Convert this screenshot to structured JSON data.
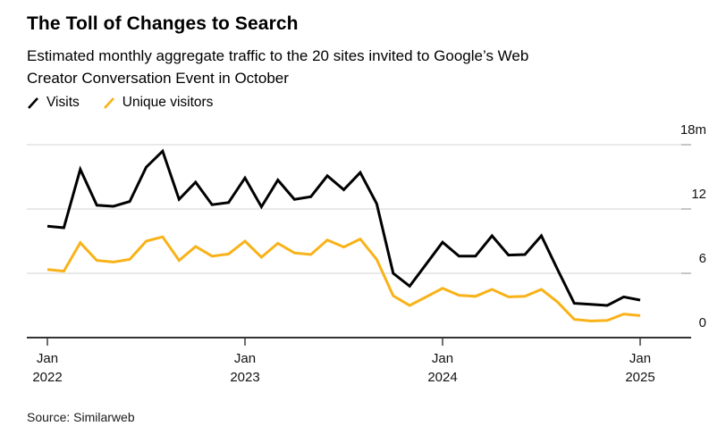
{
  "header": {
    "title": "The Toll of Changes to Search",
    "subtitle_lines": [
      "Estimated monthly aggregate traffic to the 20 sites invited to Google’s Web",
      "Creator Conversation Event in October"
    ]
  },
  "legend": [
    {
      "label": "Visits",
      "color": "#000000"
    },
    {
      "label": "Unique visitors",
      "color": "#F9B218"
    }
  ],
  "source": "Source: Similarweb",
  "chart_data": {
    "type": "line",
    "title": "The Toll of Changes to Search",
    "subtitle": "Estimated monthly aggregate traffic to the 20 sites invited to Google’s Web Creator Conversation Event in October",
    "unit": "millions",
    "ylim": [
      0,
      18
    ],
    "y_ticks": [
      0,
      6,
      12,
      18
    ],
    "y_tick_labels": [
      "0",
      "6",
      "12",
      "18m"
    ],
    "x_tick_months": [
      0,
      12,
      24,
      36
    ],
    "x_tick_labels": [
      [
        "Jan",
        "2022"
      ],
      [
        "Jan",
        "2023"
      ],
      [
        "Jan",
        "2024"
      ],
      [
        "Jan",
        "2025"
      ]
    ],
    "grid": true,
    "legend_position": "top-left",
    "x": [
      "2022-01",
      "2022-02",
      "2022-03",
      "2022-04",
      "2022-05",
      "2022-06",
      "2022-07",
      "2022-08",
      "2022-09",
      "2022-10",
      "2022-11",
      "2022-12",
      "2023-01",
      "2023-02",
      "2023-03",
      "2023-04",
      "2023-05",
      "2023-06",
      "2023-07",
      "2023-08",
      "2023-09",
      "2023-10",
      "2023-11",
      "2023-12",
      "2024-01",
      "2024-02",
      "2024-03",
      "2024-04",
      "2024-05",
      "2024-06",
      "2024-07",
      "2024-08",
      "2024-09",
      "2024-10",
      "2024-11",
      "2024-12",
      "2025-01"
    ],
    "series": [
      {
        "name": "Visits",
        "color": "#000000",
        "values": [
          10.4,
          10.25,
          15.7,
          12.35,
          12.25,
          12.7,
          15.9,
          17.4,
          12.9,
          14.5,
          12.4,
          12.6,
          14.9,
          12.2,
          14.7,
          12.9,
          13.15,
          15.1,
          13.8,
          15.4,
          12.5,
          6.0,
          4.8,
          6.85,
          8.9,
          7.6,
          7.6,
          9.5,
          7.7,
          7.75,
          9.5,
          6.3,
          3.2,
          3.1,
          3.0,
          3.8,
          3.5
        ]
      },
      {
        "name": "Unique visitors",
        "color": "#F9B218",
        "values": [
          6.35,
          6.2,
          8.85,
          7.2,
          7.05,
          7.3,
          9.0,
          9.4,
          7.2,
          8.5,
          7.6,
          7.8,
          9.0,
          7.5,
          8.8,
          7.9,
          7.75,
          9.1,
          8.45,
          9.2,
          7.3,
          3.9,
          3.0,
          3.8,
          4.6,
          3.95,
          3.85,
          4.5,
          3.8,
          3.85,
          4.5,
          3.3,
          1.7,
          1.55,
          1.6,
          2.2,
          2.05
        ]
      }
    ],
    "colors": {
      "grid": "#dcdcdc",
      "grid_end_tick": "#a6a6a6",
      "baseline": "#333333",
      "axis_tick": "#333333"
    }
  }
}
